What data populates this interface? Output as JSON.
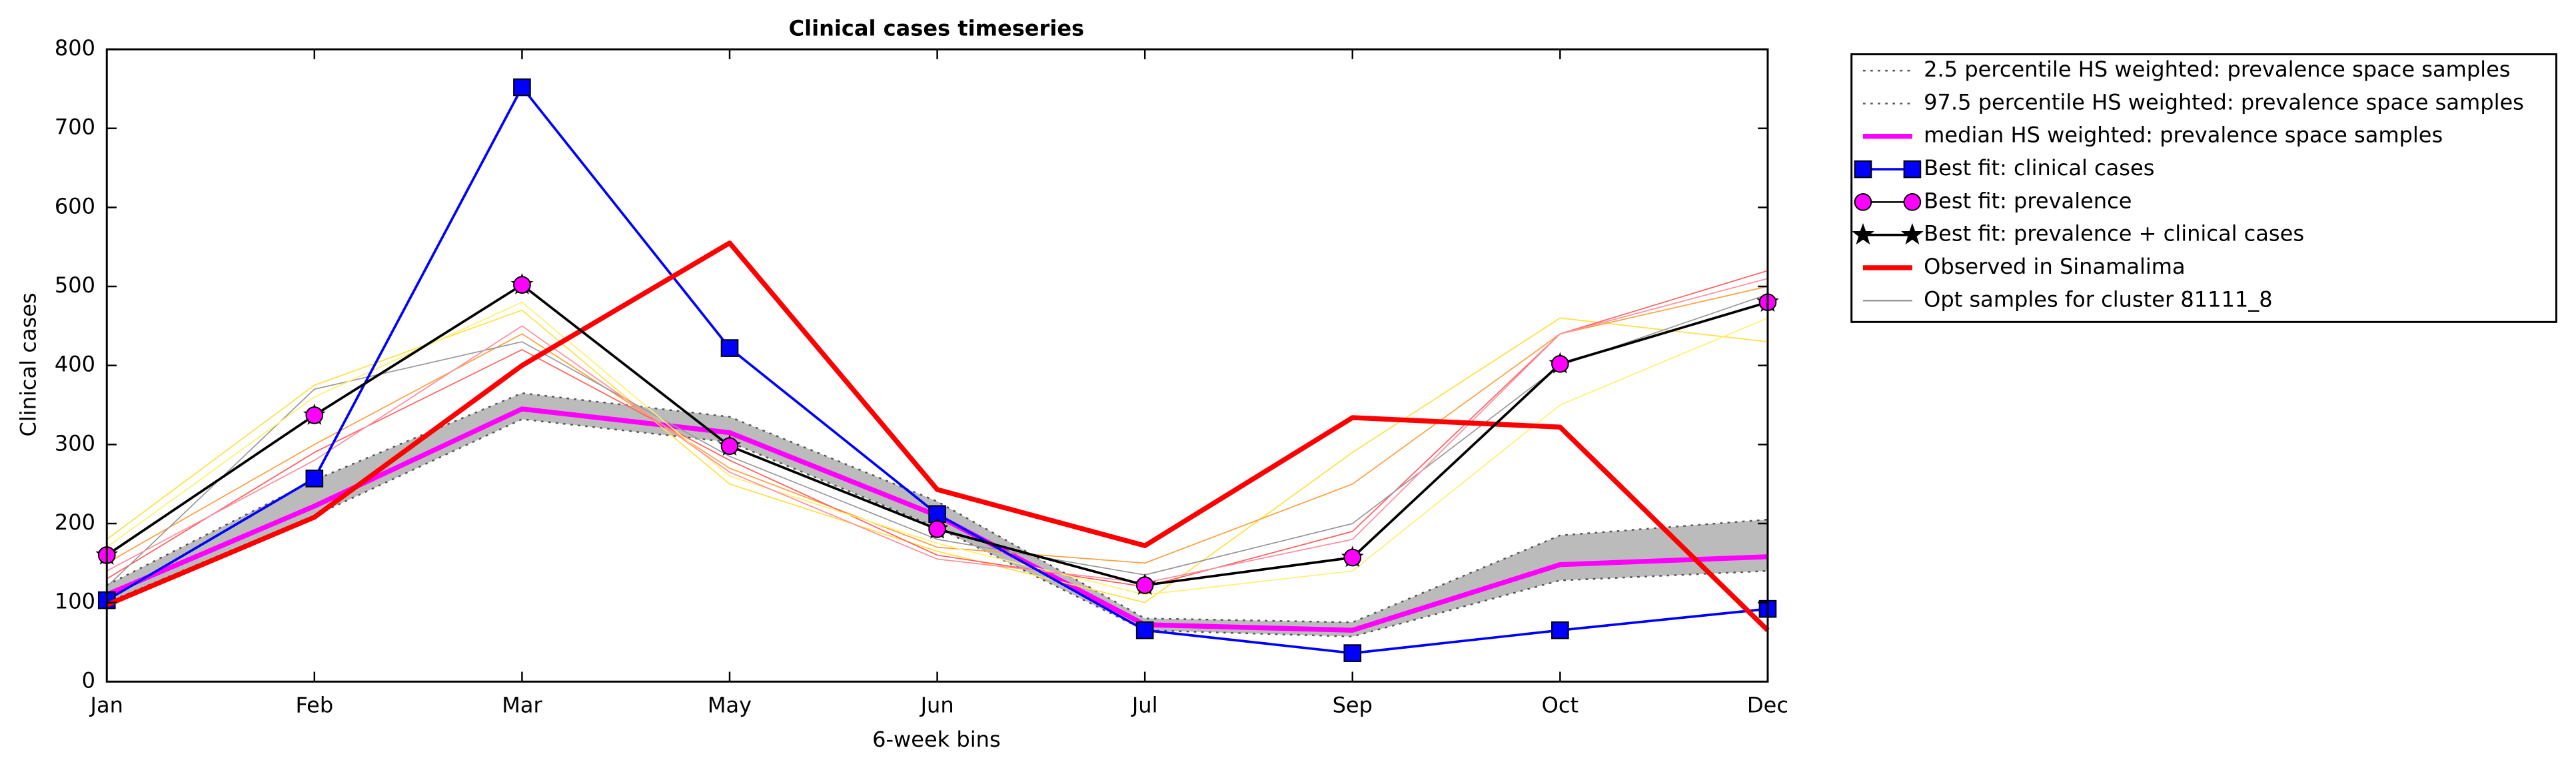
{
  "chart_data": {
    "type": "line",
    "title": "Clinical cases timeseries",
    "xlabel": "6-week bins",
    "ylabel": "Clinical cases",
    "categories": [
      "Jan",
      "Feb",
      "Mar",
      "May",
      "Jun",
      "Jul",
      "Sep",
      "Oct",
      "Dec"
    ],
    "ylim": [
      0,
      800
    ],
    "yticks": [
      0,
      100,
      200,
      300,
      400,
      500,
      600,
      700,
      800
    ],
    "legend": "outside-upper-right",
    "fill_between": {
      "series": [
        0,
        1
      ],
      "color": "#bbbbbb"
    },
    "series": [
      {
        "name": "2.5 percentile HS weighted: prevalence space samples",
        "color": "#555555",
        "dash": "dotted",
        "width": 1,
        "values": [
          100,
          210,
          332,
          303,
          195,
          65,
          57,
          128,
          140
        ]
      },
      {
        "name": "97.5 percentile HS weighted: prevalence space samples",
        "color": "#555555",
        "dash": "dotted",
        "width": 1,
        "values": [
          122,
          255,
          365,
          335,
          228,
          80,
          75,
          185,
          205
        ]
      },
      {
        "name": "median HS weighted: prevalence space samples",
        "color": "#ff00ff",
        "width": 3,
        "values": [
          110,
          222,
          345,
          315,
          210,
          72,
          65,
          148,
          158
        ]
      },
      {
        "name": "Opt samples for cluster 81111_8",
        "color": "#999999",
        "width": 0.7,
        "lines": [
          {
            "color": "#ffe040",
            "values": [
              180,
              375,
              470,
              250,
              165,
              100,
              290,
              460,
              430
            ]
          },
          {
            "color": "#ffa040",
            "values": [
              150,
              300,
              440,
              270,
              170,
              150,
              250,
              440,
              500
            ]
          },
          {
            "color": "#ff6060",
            "values": [
              130,
              290,
              420,
              280,
              160,
              120,
              190,
              440,
              520
            ]
          },
          {
            "color": "#999999",
            "values": [
              120,
              370,
              430,
              285,
              180,
              135,
              200,
              400,
              490
            ]
          },
          {
            "color": "#fff070",
            "values": [
              170,
              360,
              480,
              260,
              175,
              110,
              140,
              350,
              460
            ]
          },
          {
            "color": "#ff8fa0",
            "values": [
              140,
              280,
              450,
              265,
              155,
              125,
              180,
              440,
              510
            ]
          }
        ]
      },
      {
        "name": "Best fit: clinical cases",
        "color": "#0000ff",
        "marker": "square",
        "markercolor": "#0000ff",
        "width": 1.5,
        "values": [
          103,
          257,
          752,
          422,
          212,
          65,
          36,
          65,
          92
        ]
      },
      {
        "name": "Observed in Sinamalima",
        "color": "#ff0000",
        "width": 3,
        "values": [
          97,
          208,
          400,
          555,
          243,
          172,
          334,
          322,
          65
        ]
      },
      {
        "name": "Best fit: prevalence + clinical cases",
        "color": "#000000",
        "marker": "star",
        "markercolor": "#000000",
        "width": 1.5,
        "values": [
          160,
          337,
          502,
          298,
          193,
          122,
          157,
          402,
          480
        ]
      },
      {
        "name": "Best fit: prevalence",
        "color": "#000000",
        "marker": "circle",
        "markercolor": "#ff00ff",
        "width": 0,
        "values": [
          160,
          337,
          502,
          298,
          193,
          122,
          157,
          402,
          480
        ]
      }
    ],
    "legend_order": [
      0,
      1,
      2,
      4,
      7,
      6,
      5,
      3
    ]
  }
}
